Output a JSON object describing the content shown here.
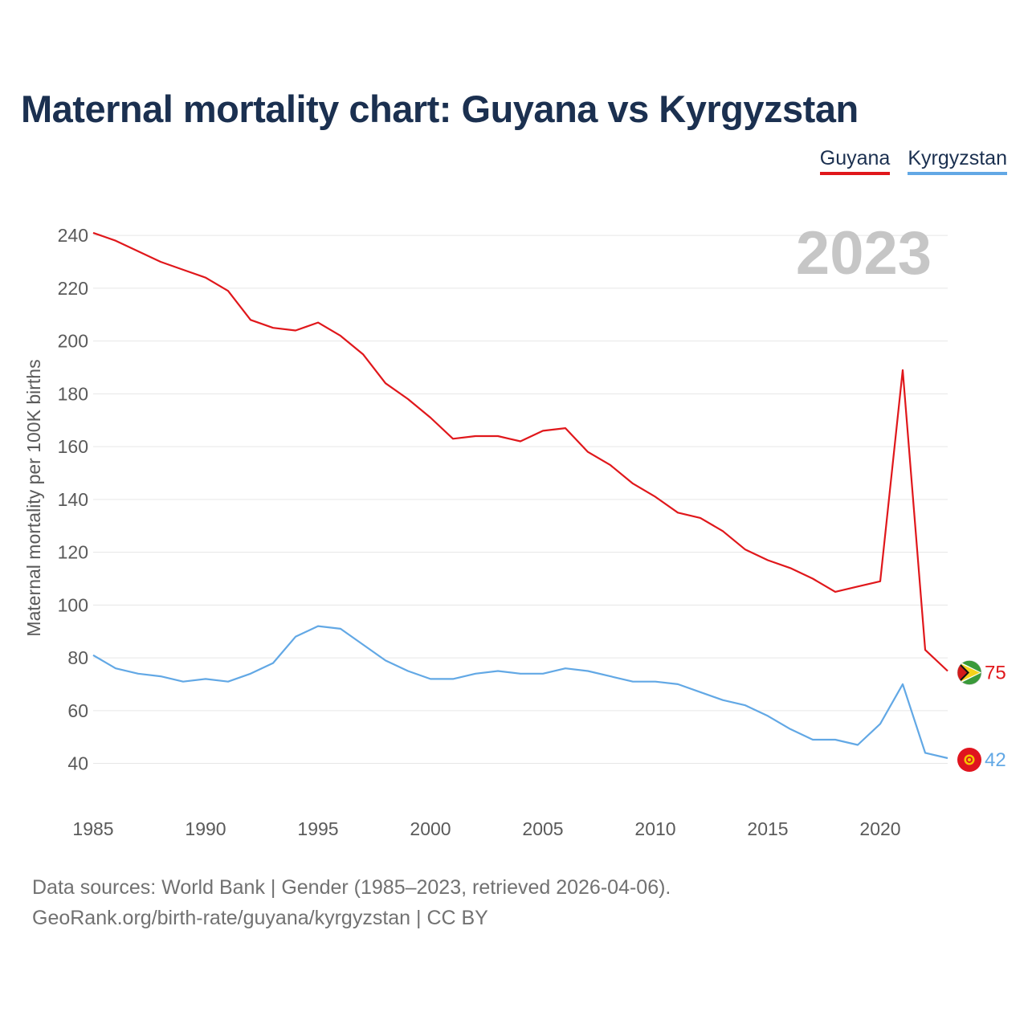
{
  "title": "Maternal mortality chart: Guyana vs Kyrgyzstan",
  "legend": {
    "guyana": "Guyana",
    "kyrgyzstan": "Kyrgyzstan"
  },
  "footer": {
    "line1": "Data sources: World Bank | Gender (1985–2023, retrieved 2026-04-06).",
    "line2": "GeoRank.org/birth-rate/guyana/kyrgyzstan | CC BY"
  },
  "colors": {
    "guyana": "#e0171b",
    "kyrgyzstan": "#62a8e5",
    "title": "#1b3050",
    "grid": "#e6e6e6"
  },
  "chart_data": {
    "type": "line",
    "title": "Maternal mortality chart: Guyana vs Kyrgyzstan",
    "ylabel": "Maternal mortality per 100K births",
    "xlabel": "",
    "year_label": "2023",
    "ylim": [
      28,
      244
    ],
    "xlim": [
      1985,
      2023
    ],
    "yticks": [
      40,
      60,
      80,
      100,
      120,
      140,
      160,
      180,
      200,
      220,
      240
    ],
    "xticks": [
      1985,
      1990,
      1995,
      2000,
      2005,
      2010,
      2015,
      2020
    ],
    "x": [
      1985,
      1986,
      1987,
      1988,
      1989,
      1990,
      1991,
      1992,
      1993,
      1994,
      1995,
      1996,
      1997,
      1998,
      1999,
      2000,
      2001,
      2002,
      2003,
      2004,
      2005,
      2006,
      2007,
      2008,
      2009,
      2010,
      2011,
      2012,
      2013,
      2014,
      2015,
      2016,
      2017,
      2018,
      2019,
      2020,
      2021,
      2022,
      2023
    ],
    "series": [
      {
        "name": "Guyana",
        "color": "#e0171b",
        "end_label": "75",
        "flag": "guyana-flag-icon",
        "values": [
          241,
          238,
          234,
          230,
          227,
          224,
          219,
          208,
          205,
          204,
          207,
          202,
          195,
          184,
          178,
          171,
          163,
          164,
          164,
          162,
          166,
          167,
          158,
          153,
          146,
          141,
          135,
          133,
          128,
          121,
          117,
          114,
          110,
          105,
          107,
          109,
          189,
          83,
          75
        ]
      },
      {
        "name": "Kyrgyzstan",
        "color": "#62a8e5",
        "end_label": "42",
        "flag": "kyrgyzstan-flag-icon",
        "values": [
          81,
          76,
          74,
          73,
          71,
          72,
          71,
          74,
          78,
          88,
          92,
          91,
          85,
          79,
          75,
          72,
          72,
          74,
          75,
          74,
          74,
          76,
          75,
          73,
          71,
          71,
          70,
          67,
          64,
          62,
          58,
          53,
          49,
          49,
          47,
          55,
          70,
          44,
          42
        ]
      }
    ]
  }
}
